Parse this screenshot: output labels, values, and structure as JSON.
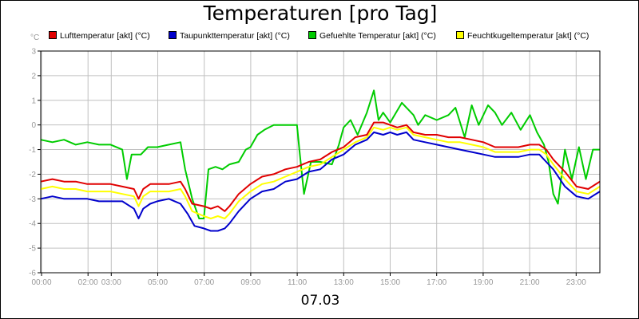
{
  "title": "Temperaturen [pro Tag]",
  "unit": "°C",
  "date": "07.03",
  "chart_data": {
    "type": "line",
    "title": "Temperaturen [pro Tag]",
    "xlabel": "07.03",
    "ylabel": "°C",
    "xlim": [
      0,
      24
    ],
    "ylim": [
      -6,
      3
    ],
    "grid": true,
    "legend_position": "top",
    "y_ticks": [
      "3",
      "2",
      "1",
      "0",
      "-1",
      "-2",
      "-3",
      "-4",
      "-5",
      "-6"
    ],
    "x_ticks": [
      "00:00",
      "02:00",
      "03:00",
      "05:00",
      "07:00",
      "09:00",
      "11:00",
      "13:00",
      "15:00",
      "17:00",
      "19:00",
      "21:00",
      "23:00"
    ],
    "series": [
      {
        "name": "Lufttemperatur [akt] (°C)",
        "color": "#e00000",
        "x": [
          0,
          0.5,
          1,
          1.5,
          2,
          2.5,
          3,
          3.5,
          4,
          4.2,
          4.4,
          4.7,
          5,
          5.5,
          6,
          6.2,
          6.5,
          7,
          7.3,
          7.6,
          7.9,
          8.1,
          8.5,
          9,
          9.5,
          10,
          10.5,
          11,
          11.5,
          12,
          12.5,
          13,
          13.5,
          14,
          14.3,
          14.7,
          15,
          15.3,
          15.7,
          16,
          16.5,
          17,
          17.5,
          18,
          18.5,
          19,
          19.5,
          20,
          20.5,
          21,
          21.4,
          21.7,
          22,
          22.5,
          23,
          23.5,
          24
        ],
        "y": [
          -2.3,
          -2.2,
          -2.3,
          -2.3,
          -2.4,
          -2.4,
          -2.4,
          -2.5,
          -2.6,
          -3.0,
          -2.6,
          -2.4,
          -2.4,
          -2.4,
          -2.3,
          -2.6,
          -3.2,
          -3.3,
          -3.4,
          -3.3,
          -3.5,
          -3.3,
          -2.8,
          -2.4,
          -2.1,
          -2.0,
          -1.8,
          -1.7,
          -1.5,
          -1.4,
          -1.1,
          -0.9,
          -0.5,
          -0.4,
          0.1,
          0.1,
          0.0,
          -0.1,
          0.0,
          -0.3,
          -0.4,
          -0.4,
          -0.5,
          -0.5,
          -0.6,
          -0.7,
          -0.9,
          -0.9,
          -0.9,
          -0.8,
          -0.8,
          -1.0,
          -1.4,
          -1.9,
          -2.5,
          -2.6,
          -2.3
        ]
      },
      {
        "name": "Taupunkttemperatur [akt] (°C)",
        "color": "#0000cc",
        "x": [
          0,
          0.5,
          1,
          1.5,
          2,
          2.5,
          3,
          3.5,
          4,
          4.2,
          4.4,
          4.7,
          5,
          5.5,
          6,
          6.3,
          6.6,
          7,
          7.3,
          7.6,
          7.9,
          8.1,
          8.5,
          9,
          9.5,
          10,
          10.5,
          11,
          11.5,
          12,
          12.5,
          13,
          13.5,
          14,
          14.3,
          14.7,
          15,
          15.3,
          15.7,
          16,
          16.5,
          17,
          17.5,
          18,
          18.5,
          19,
          19.5,
          20,
          20.5,
          21,
          21.4,
          21.7,
          22,
          22.5,
          23,
          23.5,
          24
        ],
        "y": [
          -3.0,
          -2.9,
          -3.0,
          -3.0,
          -3.0,
          -3.1,
          -3.1,
          -3.1,
          -3.4,
          -3.8,
          -3.4,
          -3.2,
          -3.1,
          -3.0,
          -3.2,
          -3.6,
          -4.1,
          -4.2,
          -4.3,
          -4.3,
          -4.2,
          -4.0,
          -3.5,
          -3.0,
          -2.7,
          -2.6,
          -2.3,
          -2.2,
          -1.9,
          -1.8,
          -1.4,
          -1.2,
          -0.8,
          -0.6,
          -0.3,
          -0.4,
          -0.3,
          -0.4,
          -0.3,
          -0.6,
          -0.7,
          -0.8,
          -0.9,
          -1.0,
          -1.1,
          -1.2,
          -1.3,
          -1.3,
          -1.3,
          -1.2,
          -1.2,
          -1.5,
          -1.8,
          -2.5,
          -2.9,
          -3.0,
          -2.7
        ]
      },
      {
        "name": "Gefuehlte Temperatur [akt] (°C)",
        "color": "#00cc00",
        "x": [
          0,
          0.5,
          1,
          1.5,
          2,
          2.5,
          3,
          3.5,
          3.7,
          3.9,
          4.1,
          4.3,
          4.6,
          5,
          5.5,
          6,
          6.2,
          6.5,
          6.8,
          7,
          7.2,
          7.5,
          7.8,
          8.1,
          8.5,
          8.8,
          9.0,
          9.3,
          9.6,
          10,
          10.5,
          11,
          11.1,
          11.3,
          11.6,
          12,
          12.5,
          12.8,
          13.0,
          13.3,
          13.6,
          14,
          14.3,
          14.5,
          14.7,
          15,
          15.5,
          16,
          16.2,
          16.5,
          17,
          17.5,
          17.8,
          18.2,
          18.5,
          18.8,
          19.2,
          19.5,
          19.8,
          20.2,
          20.6,
          21,
          21.3,
          21.6,
          21.8,
          22,
          22.2,
          22.5,
          22.8,
          23.1,
          23.4,
          23.7,
          24
        ],
        "y": [
          -0.6,
          -0.7,
          -0.6,
          -0.8,
          -0.7,
          -0.8,
          -0.8,
          -1.0,
          -2.2,
          -1.2,
          -1.2,
          -1.2,
          -0.9,
          -0.9,
          -0.8,
          -0.7,
          -1.8,
          -3.0,
          -3.8,
          -3.8,
          -1.8,
          -1.7,
          -1.8,
          -1.6,
          -1.5,
          -1.0,
          -0.9,
          -0.4,
          -0.2,
          0.0,
          0.0,
          0.0,
          -1.0,
          -2.8,
          -1.5,
          -1.5,
          -1.6,
          -0.8,
          -0.1,
          0.2,
          -0.4,
          0.5,
          1.4,
          0.2,
          0.5,
          0.1,
          0.9,
          0.4,
          0.0,
          0.4,
          0.2,
          0.4,
          0.7,
          -0.5,
          0.8,
          0.0,
          0.8,
          0.5,
          0.0,
          0.5,
          -0.2,
          0.4,
          -0.3,
          -0.8,
          -1.5,
          -2.8,
          -3.2,
          -1.0,
          -2.2,
          -0.9,
          -2.2,
          -1.0,
          -1.0
        ]
      },
      {
        "name": "Feuchtkugeltemperatur [akt] (°C)",
        "color": "#ffff00",
        "x": [
          0,
          0.5,
          1,
          1.5,
          2,
          2.5,
          3,
          3.5,
          4,
          4.2,
          4.4,
          4.7,
          5,
          5.5,
          6,
          6.2,
          6.5,
          7,
          7.3,
          7.6,
          7.9,
          8.1,
          8.5,
          9,
          9.5,
          10,
          10.5,
          11,
          11.5,
          12,
          12.5,
          13,
          13.5,
          14,
          14.3,
          14.7,
          15,
          15.3,
          15.7,
          16,
          16.5,
          17,
          17.5,
          18,
          18.5,
          19,
          19.5,
          20,
          20.5,
          21,
          21.4,
          21.7,
          22,
          22.5,
          23,
          23.5,
          24
        ],
        "y": [
          -2.6,
          -2.5,
          -2.6,
          -2.6,
          -2.7,
          -2.7,
          -2.7,
          -2.8,
          -2.9,
          -3.3,
          -2.9,
          -2.7,
          -2.7,
          -2.7,
          -2.6,
          -2.9,
          -3.5,
          -3.7,
          -3.8,
          -3.7,
          -3.8,
          -3.6,
          -3.1,
          -2.7,
          -2.4,
          -2.3,
          -2.1,
          -1.9,
          -1.7,
          -1.6,
          -1.3,
          -1.0,
          -0.7,
          -0.5,
          -0.1,
          -0.2,
          -0.1,
          -0.2,
          -0.1,
          -0.4,
          -0.5,
          -0.6,
          -0.7,
          -0.7,
          -0.8,
          -0.9,
          -1.1,
          -1.1,
          -1.1,
          -1.0,
          -1.0,
          -1.2,
          -1.6,
          -2.2,
          -2.7,
          -2.8,
          -2.5
        ]
      }
    ]
  }
}
